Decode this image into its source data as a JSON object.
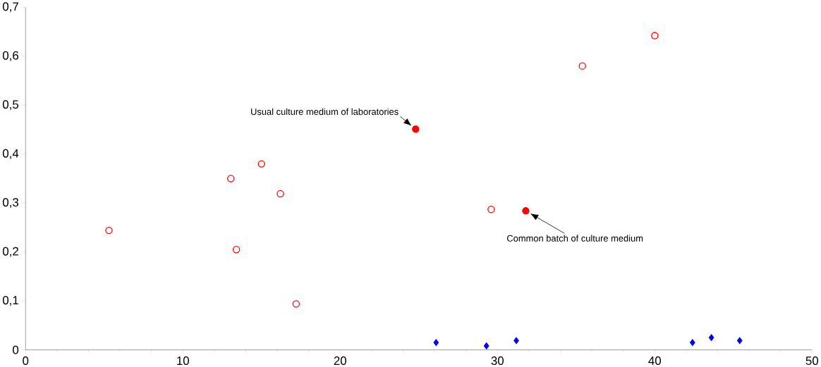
{
  "chart_data": {
    "type": "scatter",
    "series": [
      {
        "color": "#ff0000",
        "marker": "circle",
        "x": [
          5.3,
          13.05,
          13.4,
          15.0,
          16.2,
          17.2,
          29.6,
          35.4,
          40.0
        ],
        "values": [
          0.244,
          0.35,
          0.205,
          0.38,
          0.319,
          0.094,
          0.287,
          0.58,
          0.642
        ]
      },
      {
        "color": "#ff0000",
        "marker": "circle",
        "x": [
          24.8,
          31.8
        ],
        "values": [
          0.451,
          0.284
        ]
      },
      {
        "color": "#0000ff",
        "marker": "diamond",
        "x": [
          26.1,
          29.3,
          31.2,
          42.4,
          43.6,
          45.4
        ],
        "values": [
          0.015,
          0.008,
          0.019,
          0.015,
          0.025,
          0.019
        ]
      }
    ],
    "xlim": [
      0,
      50
    ],
    "ylim": [
      0,
      0.7
    ],
    "xticks": [
      0,
      10,
      20,
      30,
      40,
      50
    ],
    "yticks": [
      0,
      {
        "value": 0.1,
        "label": "0,1"
      },
      {
        "value": 0.2,
        "label": "0,2"
      },
      {
        "value": 0.3,
        "label": "0,3"
      },
      {
        "value": 0.4,
        "label": "0,4"
      },
      {
        "value": 0.5,
        "label": "0,5"
      },
      {
        "value": 0.6,
        "label": "0,6"
      },
      {
        "value": 0.7,
        "label": "0,7"
      }
    ],
    "grid": false,
    "annotations": [
      {
        "text": "Usual culture medium of laboratories",
        "x": 24.8,
        "y": 0.451
      },
      {
        "text": "Common batch of culture medium",
        "x": 31.8,
        "y": 0.284
      }
    ]
  }
}
